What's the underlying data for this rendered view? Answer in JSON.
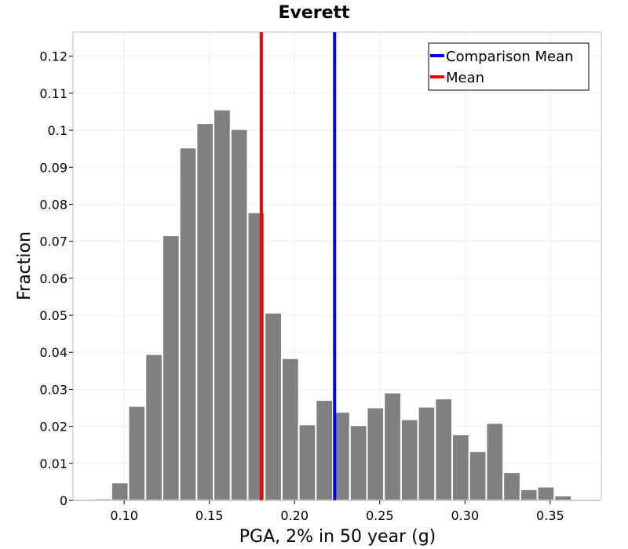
{
  "chart_data": {
    "type": "bar",
    "title": "Everett",
    "xlabel": "PGA, 2% in 50 year (g)",
    "ylabel": "Fraction",
    "xlim": [
      0.07,
      0.38
    ],
    "ylim": [
      0,
      0.1265
    ],
    "x_ticks": [
      "0.10",
      "0.15",
      "0.20",
      "0.25",
      "0.30",
      "0.35"
    ],
    "x_tick_values": [
      0.1,
      0.15,
      0.2,
      0.25,
      0.3,
      0.35
    ],
    "y_ticks": [
      "0",
      "0.01",
      "0.02",
      "0.03",
      "0.04",
      "0.05",
      "0.06",
      "0.07",
      "0.08",
      "0.09",
      "0.1",
      "0.11",
      "0.12"
    ],
    "y_tick_values": [
      0,
      0.01,
      0.02,
      0.03,
      0.04,
      0.05,
      0.06,
      0.07,
      0.08,
      0.09,
      0.1,
      0.11,
      0.12
    ],
    "grid": true,
    "bin_width": 0.01,
    "bins": [
      {
        "x": 0.0775,
        "value": 0.0003
      },
      {
        "x": 0.0875,
        "value": 0.0005
      },
      {
        "x": 0.0975,
        "value": 0.0048
      },
      {
        "x": 0.1075,
        "value": 0.0255
      },
      {
        "x": 0.1175,
        "value": 0.0395
      },
      {
        "x": 0.1275,
        "value": 0.0716
      },
      {
        "x": 0.1375,
        "value": 0.0953
      },
      {
        "x": 0.1475,
        "value": 0.1019
      },
      {
        "x": 0.1575,
        "value": 0.1056
      },
      {
        "x": 0.1675,
        "value": 0.1003
      },
      {
        "x": 0.1775,
        "value": 0.0778
      },
      {
        "x": 0.1875,
        "value": 0.0507
      },
      {
        "x": 0.1975,
        "value": 0.0384
      },
      {
        "x": 0.2075,
        "value": 0.0205
      },
      {
        "x": 0.2175,
        "value": 0.0271
      },
      {
        "x": 0.2275,
        "value": 0.0239
      },
      {
        "x": 0.2375,
        "value": 0.0203
      },
      {
        "x": 0.2475,
        "value": 0.0251
      },
      {
        "x": 0.2575,
        "value": 0.0291
      },
      {
        "x": 0.2675,
        "value": 0.0219
      },
      {
        "x": 0.2775,
        "value": 0.0253
      },
      {
        "x": 0.2875,
        "value": 0.0275
      },
      {
        "x": 0.2975,
        "value": 0.0178
      },
      {
        "x": 0.3075,
        "value": 0.0133
      },
      {
        "x": 0.3175,
        "value": 0.0209
      },
      {
        "x": 0.3275,
        "value": 0.0076
      },
      {
        "x": 0.3375,
        "value": 0.003
      },
      {
        "x": 0.3475,
        "value": 0.0037
      },
      {
        "x": 0.3575,
        "value": 0.0013
      },
      {
        "x": 0.3675,
        "value": 0.0004
      },
      {
        "x": 0.3775,
        "value": 0.0002
      }
    ],
    "bar_color": "#808080",
    "vlines": [
      {
        "name": "Comparison Mean",
        "x": 0.2235,
        "color": "#0000ee"
      },
      {
        "name": "Mean",
        "x": 0.1805,
        "color": "#ee0000"
      }
    ],
    "legend": {
      "placement": "top-right",
      "entries": [
        {
          "label": "Comparison Mean",
          "color": "#0000ee"
        },
        {
          "label": "Mean",
          "color": "#ee0000"
        }
      ]
    }
  }
}
